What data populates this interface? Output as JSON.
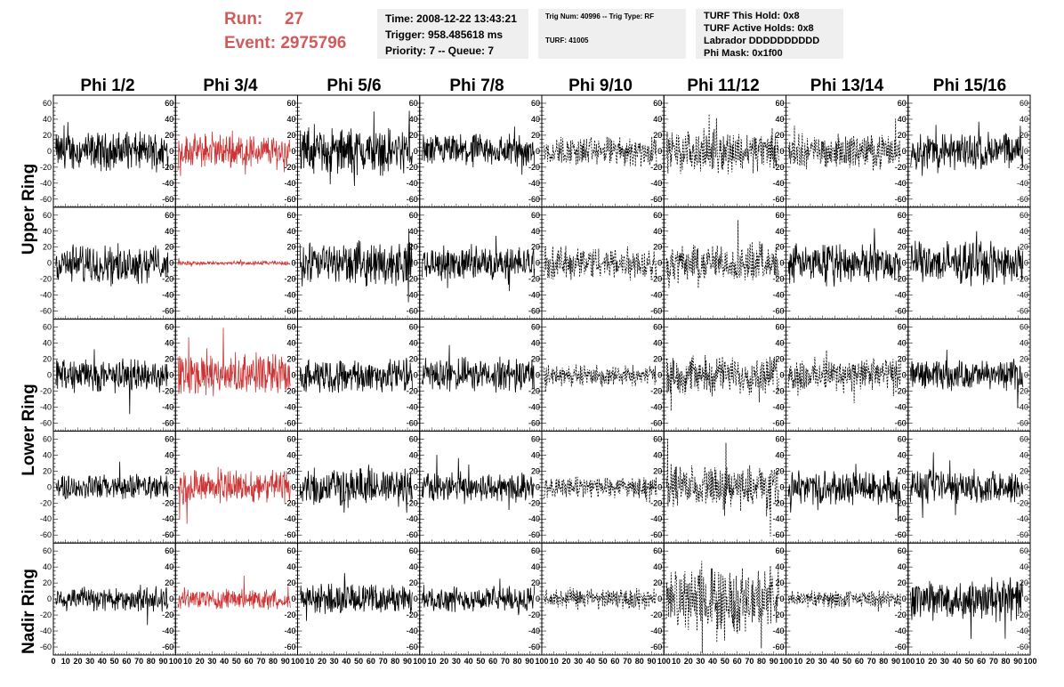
{
  "header": {
    "run_label": "Run:",
    "run_value": "27",
    "event_label": "Event:",
    "event_value": "2975796",
    "time": "Time: 2008-12-22 13:43:21",
    "trigger": "Trigger: 958.485618 ms",
    "priority": "Priority: 7 -- Queue: 7",
    "trig_num": "Trig Num: 40996 -- Trig Type: RF",
    "turf": "TURF: 41005",
    "turf_this_hold": "TURF This Hold: 0x8",
    "turf_active_holds": "TURF Active Holds: 0x8",
    "labrador": "Labrador DDDDDDDDDD",
    "phi_mask": "Phi Mask: 0x1f00"
  },
  "columns": [
    "Phi 1/2",
    "Phi 3/4",
    "Phi 5/6",
    "Phi 7/8",
    "Phi 9/10",
    "Phi 11/12",
    "Phi 13/14",
    "Phi 15/16"
  ],
  "row_groups": [
    "Upper Ring",
    "Lower Ring",
    "Nadir Ring"
  ],
  "colors": {
    "normal": "#000000",
    "highlight": "#cc3333",
    "header_red": "#d45a5a"
  },
  "chart_data": {
    "type": "line",
    "title": "",
    "xlabel": "",
    "ylabel": "",
    "xlim": [
      0,
      100
    ],
    "ylim": [
      -70,
      70
    ],
    "x_ticks": [
      0,
      10,
      20,
      30,
      40,
      50,
      60,
      70,
      80,
      90,
      100
    ],
    "y_ticks": [
      -60,
      -40,
      -20,
      0,
      20,
      40,
      60
    ],
    "grid": false,
    "n_rows": 5,
    "n_cols": 8,
    "panel_styles": [
      [
        "solid",
        "red",
        "solid",
        "solid",
        "dotted",
        "dotted",
        "dotted",
        "solid"
      ],
      [
        "solid",
        "red",
        "solid",
        "solid",
        "dotted",
        "dotted",
        "solid",
        "solid"
      ],
      [
        "solid",
        "red",
        "solid",
        "solid",
        "dotted",
        "dotted",
        "dotted",
        "solid"
      ],
      [
        "solid",
        "red",
        "solid",
        "solid",
        "dotted",
        "dotted",
        "solid",
        "solid"
      ],
      [
        "solid",
        "red",
        "solid",
        "solid",
        "dotted",
        "dotted",
        "dotted",
        "solid"
      ]
    ],
    "panel_amplitudes": [
      [
        18,
        16,
        22,
        16,
        14,
        20,
        16,
        18
      ],
      [
        18,
        2,
        20,
        16,
        16,
        18,
        18,
        20
      ],
      [
        16,
        20,
        16,
        16,
        10,
        18,
        16,
        14
      ],
      [
        12,
        16,
        18,
        14,
        10,
        20,
        16,
        16
      ],
      [
        12,
        10,
        14,
        12,
        10,
        30,
        8,
        20
      ]
    ]
  }
}
